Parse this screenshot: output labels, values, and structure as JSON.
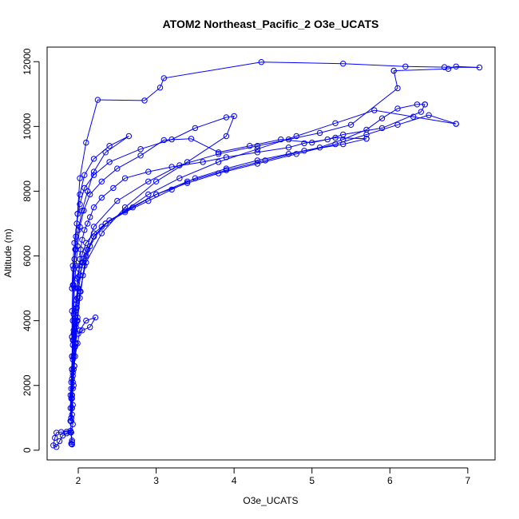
{
  "chart_data": {
    "type": "scatter",
    "title": "ATOM2 Northeast_Pacific_2 O3e_UCATS",
    "xlabel": "O3e_UCATS",
    "ylabel": "Altitude (m)",
    "xlim": [
      1.6,
      7.35
    ],
    "ylim": [
      -300,
      12450
    ],
    "xticks": [
      2,
      3,
      4,
      5,
      6,
      7
    ],
    "yticks": [
      0,
      2000,
      4000,
      6000,
      8000,
      10000,
      12000
    ],
    "grid": false,
    "legend": "none",
    "style": "points connected by lines, open circle markers",
    "color": "#0000ff",
    "series": [
      {
        "x": [
          1.92,
          1.92,
          1.91,
          1.93,
          1.92,
          1.93,
          1.92,
          1.94,
          1.93,
          1.95,
          1.94,
          1.96,
          1.95,
          1.97,
          1.96,
          1.98,
          1.99,
          2.0,
          1.98,
          2.01,
          2.02,
          2.03,
          2.05,
          2.08,
          2.12,
          2.15,
          2.2,
          2.3,
          2.45,
          2.6,
          2.9,
          3.2,
          3.6,
          3.9,
          4.3,
          4.7,
          4.9,
          5.2,
          5.4,
          5.9,
          6.4,
          6.45
        ],
        "y": [
          180,
          300,
          550,
          800,
          1100,
          1400,
          1700,
          2000,
          2300,
          2600,
          2900,
          3200,
          3500,
          3800,
          4100,
          4400,
          4700,
          5000,
          5300,
          5600,
          5900,
          6200,
          6500,
          6800,
          7000,
          7200,
          7500,
          7800,
          8100,
          8400,
          8600,
          8750,
          8900,
          9050,
          9200,
          9350,
          9480,
          9600,
          9750,
          9950,
          10450,
          10680
        ]
      },
      {
        "x": [
          6.45,
          6.35,
          6.1,
          5.9,
          5.7,
          5.4,
          5.1,
          4.7,
          4.3,
          3.9,
          3.5,
          3.2,
          2.9,
          2.6,
          2.35,
          2.2,
          2.1,
          2.05,
          2.02,
          2.0,
          1.99,
          1.97,
          1.96,
          1.95,
          1.94,
          1.93,
          1.92,
          1.92,
          1.91,
          1.9,
          1.9
        ],
        "y": [
          10680,
          10680,
          10550,
          10250,
          9900,
          9600,
          9350,
          9150,
          8950,
          8700,
          8400,
          8050,
          7700,
          7350,
          7000,
          6700,
          6400,
          6050,
          5700,
          5350,
          5000,
          4650,
          4300,
          3950,
          3600,
          3250,
          2900,
          2500,
          2100,
          1700,
          1300
        ]
      },
      {
        "x": [
          1.92,
          1.93,
          1.95,
          1.97,
          1.99,
          2.02,
          2.06,
          2.1,
          2.2,
          2.4,
          2.7,
          3.0,
          3.4,
          3.8,
          4.3,
          4.8,
          5.3,
          5.7,
          6.1,
          6.5,
          6.85
        ],
        "y": [
          1300,
          1900,
          2600,
          3300,
          4000,
          4700,
          5400,
          6000,
          6600,
          7100,
          7500,
          7900,
          8250,
          8550,
          8850,
          9150,
          9450,
          9750,
          10050,
          10350,
          10080
        ]
      },
      {
        "x": [
          6.85,
          6.3,
          5.8,
          5.3,
          4.8,
          4.3,
          3.8,
          3.3,
          2.9,
          2.6,
          2.35,
          2.2,
          2.12,
          2.06,
          2.02,
          1.99,
          1.97,
          1.95,
          1.94,
          1.93,
          1.92,
          1.92,
          1.91
        ],
        "y": [
          10080,
          10300,
          10500,
          10100,
          9700,
          9300,
          8900,
          8400,
          7900,
          7400,
          7000,
          6600,
          6200,
          5800,
          5400,
          5000,
          4500,
          4000,
          3400,
          2800,
          2200,
          1600,
          1000
        ]
      },
      {
        "x": [
          1.91,
          1.92,
          1.94,
          1.96,
          1.99,
          2.03,
          2.08,
          2.15,
          2.3,
          2.6,
          3.0,
          3.4,
          3.9,
          4.4,
          4.9,
          5.4,
          5.7
        ],
        "y": [
          1000,
          1700,
          2500,
          3300,
          4100,
          4900,
          5700,
          6300,
          6900,
          7400,
          7900,
          8300,
          8650,
          8950,
          9250,
          9450,
          9620
        ]
      },
      {
        "x": [
          5.7,
          5.3,
          5.0,
          4.6,
          4.2,
          3.8,
          3.45,
          3.1,
          2.8,
          2.5,
          2.3,
          2.15,
          2.07,
          2.02,
          1.99,
          1.97,
          1.95,
          1.94,
          1.93,
          1.92
        ],
        "y": [
          9620,
          9650,
          9500,
          9600,
          9400,
          9200,
          9620,
          9580,
          9100,
          8700,
          8300,
          7900,
          7400,
          6900,
          6300,
          5700,
          5000,
          4200,
          3400,
          2500
        ]
      },
      {
        "x": [
          1.92,
          1.95,
          1.99,
          2.05,
          2.2,
          2.5,
          2.9,
          3.3,
          3.8,
          4.3,
          4.7,
          5.1,
          5.5,
          6.1,
          6.05
        ],
        "y": [
          2500,
          3600,
          4700,
          5800,
          6900,
          7700,
          8300,
          8800,
          9150,
          9400,
          9600,
          9800,
          10050,
          11180,
          11720
        ]
      },
      {
        "x": [
          6.05,
          6.75,
          6.85,
          7.15,
          6.7,
          6.2,
          5.4,
          4.35,
          3.1,
          3.05,
          2.85,
          2.25,
          2.1,
          2.02,
          1.99,
          1.96,
          1.94,
          1.93,
          1.92,
          1.91,
          1.9
        ],
        "y": [
          11720,
          11780,
          11850,
          11820,
          11830,
          11850,
          11940,
          11990,
          11490,
          11200,
          10800,
          10820,
          9500,
          8400,
          7300,
          6200,
          5100,
          4000,
          2900,
          1900,
          900
        ]
      },
      {
        "x": [
          1.9,
          1.91,
          1.93,
          1.95,
          1.98,
          2.02,
          2.1,
          2.3,
          2.6,
          3.0,
          3.4,
          3.9,
          4.0,
          3.9,
          3.5,
          3.2,
          2.8,
          2.4,
          2.2,
          2.08,
          2.02,
          1.98,
          1.95,
          1.93,
          1.92
        ],
        "y": [
          900,
          1600,
          2400,
          3200,
          4000,
          4900,
          5800,
          6700,
          7500,
          8300,
          8900,
          9700,
          10320,
          10280,
          9950,
          9600,
          9300,
          8900,
          8500,
          8100,
          7600,
          7000,
          6400,
          5700,
          5000
        ]
      },
      {
        "x": [
          1.92,
          1.94,
          1.97,
          2.0,
          2.05,
          2.12,
          2.2,
          2.35,
          2.65,
          2.4,
          2.2,
          2.08,
          2.02,
          1.99,
          1.97,
          1.95,
          1.93,
          1.92,
          1.92
        ],
        "y": [
          5000,
          5600,
          6200,
          6800,
          7400,
          8000,
          8600,
          9200,
          9700,
          9400,
          9000,
          8500,
          7900,
          7300,
          6600,
          5900,
          5100,
          4300,
          3500
        ]
      },
      {
        "x": [
          1.92,
          1.94,
          1.97,
          2.0,
          2.05,
          2.15,
          2.22,
          2.1,
          2.02,
          1.99,
          1.96,
          1.94,
          1.93,
          1.92,
          1.92,
          1.91,
          1.9
        ],
        "y": [
          3500,
          3700,
          3900,
          3600,
          3700,
          3800,
          4100,
          4000,
          3700,
          3300,
          2900,
          2500,
          2100,
          1700,
          1300,
          900,
          550
        ]
      },
      {
        "x": [
          1.9,
          1.85,
          1.78,
          1.72,
          1.7,
          1.68,
          1.72,
          1.76,
          1.8,
          1.85,
          1.9,
          1.92,
          1.92,
          1.91
        ],
        "y": [
          550,
          570,
          560,
          540,
          380,
          150,
          100,
          280,
          450,
          520,
          600,
          250,
          180,
          200
        ]
      }
    ]
  }
}
